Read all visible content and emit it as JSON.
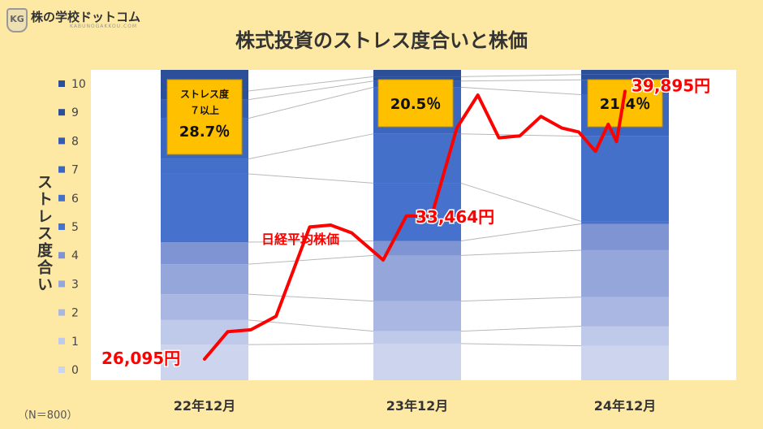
{
  "logo": {
    "badge": "KG",
    "name": "株の学校ドットコム",
    "sub": "KABUNOGAKKOU.COM"
  },
  "title": "株式投資のストレス度合いと株価",
  "note": "（N＝800）",
  "chart_data": {
    "type": "bar",
    "stacked": true,
    "percent": true,
    "categories": [
      "22年12月",
      "23年12月",
      "24年12月"
    ],
    "ylabel": "ストレス度合い",
    "legend_position": "left",
    "colors": {
      "0": "#cdd4ee",
      "1": "#bfc9ea",
      "2": "#aab7e2",
      "3": "#95a6da",
      "4": "#7f94d2",
      "5": "#4671cc",
      "6": "#4470c9",
      "7": "#3b67c1",
      "8": "#345db1",
      "9": "#2b4f98",
      "10": "#2b4f98"
    },
    "series": [
      {
        "name": "0",
        "values": [
          11.5,
          11.8,
          11.1
        ]
      },
      {
        "name": "1",
        "values": [
          7.9,
          4.0,
          6.3
        ]
      },
      {
        "name": "2",
        "values": [
          8.3,
          9.7,
          9.4
        ]
      },
      {
        "name": "3",
        "values": [
          9.7,
          14.7,
          15.1
        ]
      },
      {
        "name": "4",
        "values": [
          7.1,
          4.7,
          8.5
        ]
      },
      {
        "name": "5",
        "values": [
          22.0,
          18.6,
          0.8
        ]
      },
      {
        "name": "6",
        "values": [
          4.8,
          15.9,
          27.4
        ]
      },
      {
        "name": "7",
        "values": [
          13.1,
          15.0,
          13.4
        ]
      },
      {
        "name": "8",
        "values": [
          6.0,
          2.0,
          4.8
        ]
      },
      {
        "name": "9",
        "values": [
          2.8,
          1.4,
          1.7
        ]
      },
      {
        "name": "10",
        "values": [
          6.8,
          2.2,
          1.5
        ]
      }
    ],
    "stress_boxes": [
      {
        "lines": [
          "ストレス度",
          "７以上",
          "28.7％"
        ]
      },
      {
        "lines": [
          "20.5％"
        ]
      },
      {
        "lines": [
          "21.4％"
        ]
      }
    ],
    "nikkei": {
      "name": "日経平均株価",
      "color": "#ff0000",
      "points": [
        {
          "x": 0.0,
          "y": 26095
        },
        {
          "x": 0.11,
          "y": 27500
        },
        {
          "x": 0.22,
          "y": 27600
        },
        {
          "x": 0.34,
          "y": 28300
        },
        {
          "x": 0.5,
          "y": 32900
        },
        {
          "x": 0.6,
          "y": 33000
        },
        {
          "x": 0.7,
          "y": 32600
        },
        {
          "x": 0.85,
          "y": 31200
        },
        {
          "x": 0.96,
          "y": 33464
        },
        {
          "x": 1.08,
          "y": 33464
        },
        {
          "x": 1.2,
          "y": 38000
        },
        {
          "x": 1.3,
          "y": 39700
        },
        {
          "x": 1.4,
          "y": 37500
        },
        {
          "x": 1.5,
          "y": 37600
        },
        {
          "x": 1.6,
          "y": 38600
        },
        {
          "x": 1.7,
          "y": 38000
        },
        {
          "x": 1.78,
          "y": 37800
        },
        {
          "x": 1.86,
          "y": 36800
        },
        {
          "x": 1.92,
          "y": 38200
        },
        {
          "x": 1.96,
          "y": 37300
        },
        {
          "x": 2.0,
          "y": 39895
        }
      ],
      "yrange": [
        25000,
        41000
      ],
      "labels": [
        {
          "text": "26,095円",
          "value": 26095
        },
        {
          "text": "33,464円",
          "value": 33464
        },
        {
          "text": "39,895円",
          "value": 39895
        }
      ]
    }
  }
}
